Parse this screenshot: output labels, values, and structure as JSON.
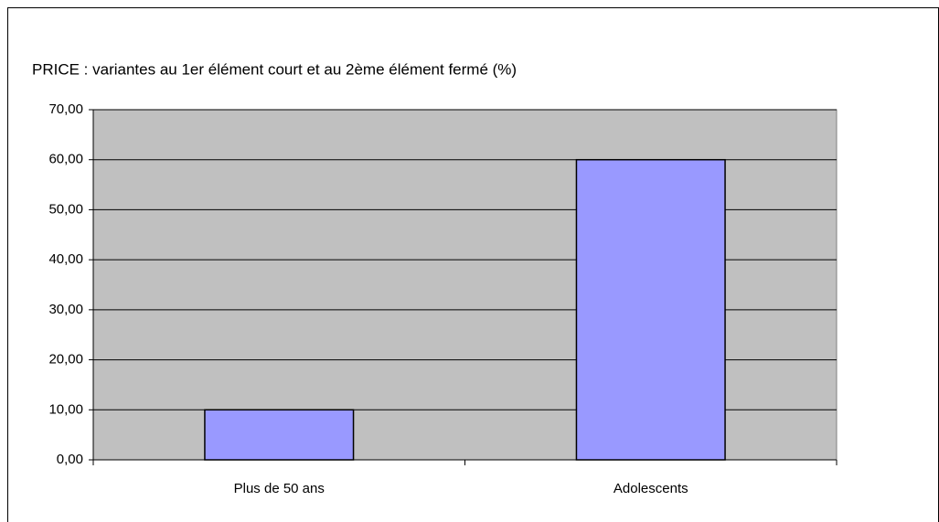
{
  "chart_data": {
    "type": "bar",
    "title": "PRICE : variantes au 1er élément court et au 2ème élément fermé (%)",
    "categories": [
      "Plus de 50 ans",
      "Adolescents"
    ],
    "values": [
      10,
      60
    ],
    "color": "#9999ff",
    "ylim": [
      0,
      70
    ],
    "yticks": [
      {
        "value": 0,
        "label": "0,00"
      },
      {
        "value": 10,
        "label": "10,00"
      },
      {
        "value": 20,
        "label": "20,00"
      },
      {
        "value": 30,
        "label": "30,00"
      },
      {
        "value": 40,
        "label": "40,00"
      },
      {
        "value": 50,
        "label": "50,00"
      },
      {
        "value": 60,
        "label": "60,00"
      },
      {
        "value": 70,
        "label": "70,00"
      }
    ],
    "grid": true
  }
}
